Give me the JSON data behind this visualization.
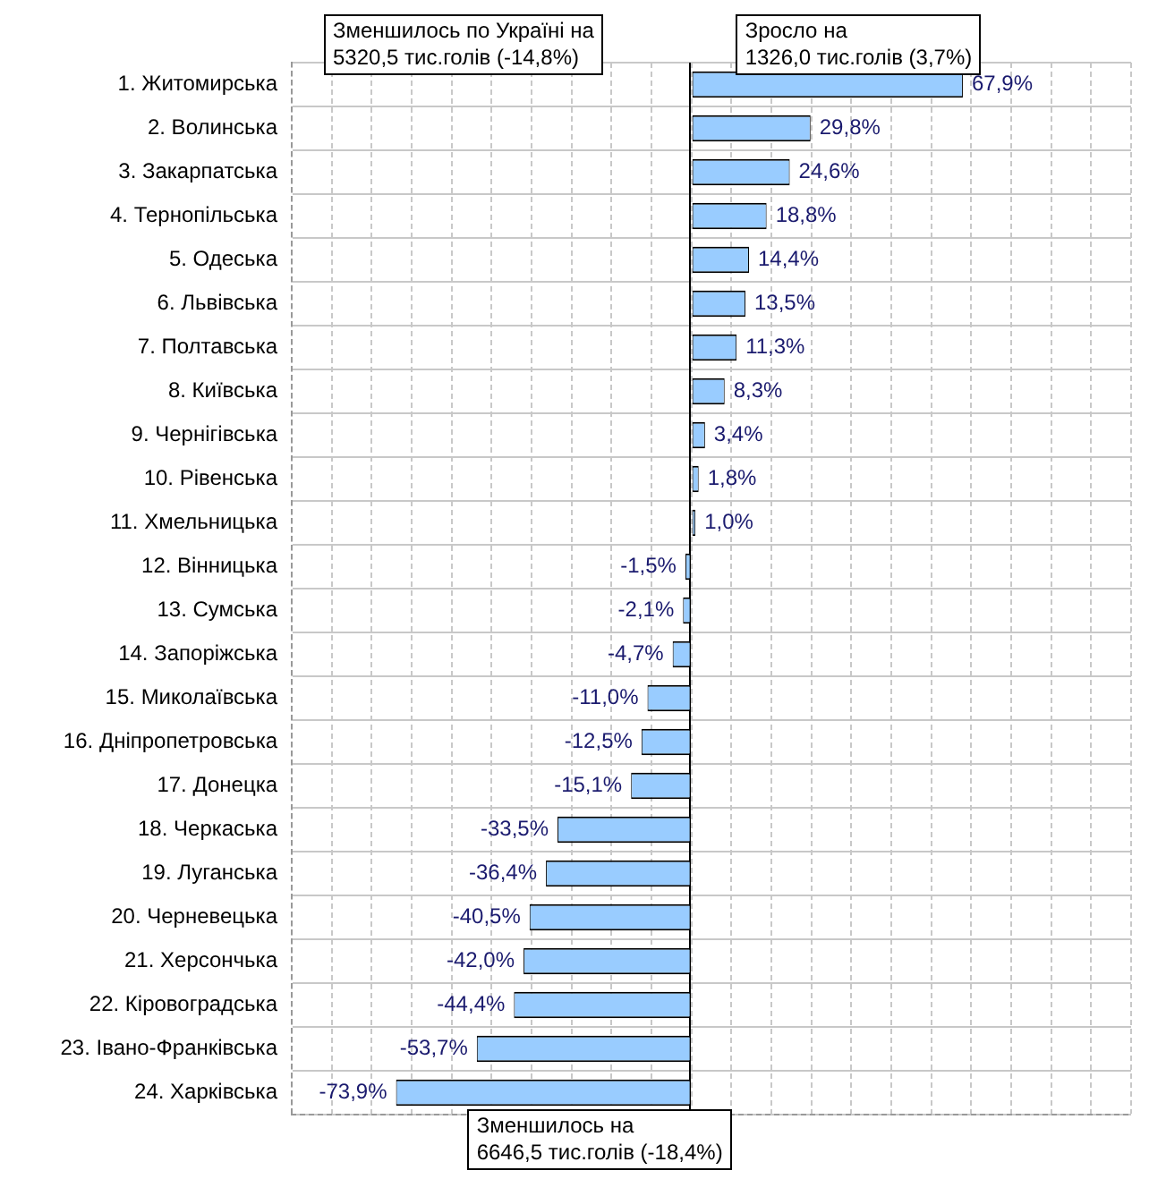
{
  "chart_data": {
    "type": "bar",
    "orientation": "horizontal",
    "categories": [
      "1. Житомирська",
      "2. Волинська",
      "3. Закарпатська",
      "4. Тернопільська",
      "5. Одеська",
      "6. Львівська",
      "7. Полтавська",
      "8. Київська",
      "9. Чернігівська",
      "10. Рівенська",
      "11. Хмельницька",
      "12. Вінницька",
      "13. Сумська",
      "14. Запоріжська",
      "15. Миколаївська",
      "16. Дніпропетровська",
      "17. Донецка",
      "18. Черкаська",
      "19. Луганська",
      "20. Черневецька",
      "21. Херсончька",
      "22. Кіровоградська",
      "23. Івано-Франківська",
      "24. Харківська"
    ],
    "values": [
      67.9,
      29.8,
      24.6,
      18.8,
      14.4,
      13.5,
      11.3,
      8.3,
      3.4,
      1.8,
      1.0,
      -1.5,
      -2.1,
      -4.7,
      -11.0,
      -12.5,
      -15.1,
      -33.5,
      -36.4,
      -40.5,
      -42.0,
      -44.4,
      -53.7,
      -73.9
    ],
    "value_labels": [
      "67,9%",
      "29,8%",
      "24,6%",
      "18,8%",
      "14,4%",
      "13,5%",
      "11,3%",
      "8,3%",
      "3,4%",
      "1,8%",
      "1,0%",
      "-1,5%",
      "-2,1%",
      "-4,7%",
      "-11,0%",
      "-12,5%",
      "-15,1%",
      "-33,5%",
      "-36,4%",
      "-40,5%",
      "-42,0%",
      "-44,4%",
      "-53,7%",
      "-73,9%"
    ],
    "color": "#99ccff",
    "xlim": [
      -100,
      110
    ],
    "xticks": [
      {
        "value": -100,
        "label": null
      },
      {
        "value": -90,
        "label": null
      },
      {
        "value": -80,
        "label": null
      },
      {
        "value": -70,
        "label": null
      },
      {
        "value": -60,
        "label": null
      },
      {
        "value": -50,
        "label": null
      },
      {
        "value": -40,
        "label": null
      },
      {
        "value": -30,
        "label": null
      },
      {
        "value": -20,
        "label": null
      },
      {
        "value": -10,
        "label": null
      },
      {
        "value": 0,
        "label": null
      },
      {
        "value": 10,
        "label": null
      },
      {
        "value": 20,
        "label": null
      },
      {
        "value": 30,
        "label": null
      },
      {
        "value": 40,
        "label": null
      },
      {
        "value": 50,
        "label": null
      },
      {
        "value": 60,
        "label": null
      },
      {
        "value": 70,
        "label": null
      },
      {
        "value": 80,
        "label": null
      },
      {
        "value": 90,
        "label": null
      },
      {
        "value": 100,
        "label": null
      },
      {
        "value": 110,
        "label": null
      }
    ],
    "grid": true,
    "tick_labels": "y",
    "annotations": [
      "Зменшилось по Україні на\n5320,5 тис.голів (-14,8%)",
      "Зросло на\n1326,0 тис.голів (3,7%)",
      "Зменшилось на\n6646,5 тис.голів (-18,4%)"
    ]
  }
}
